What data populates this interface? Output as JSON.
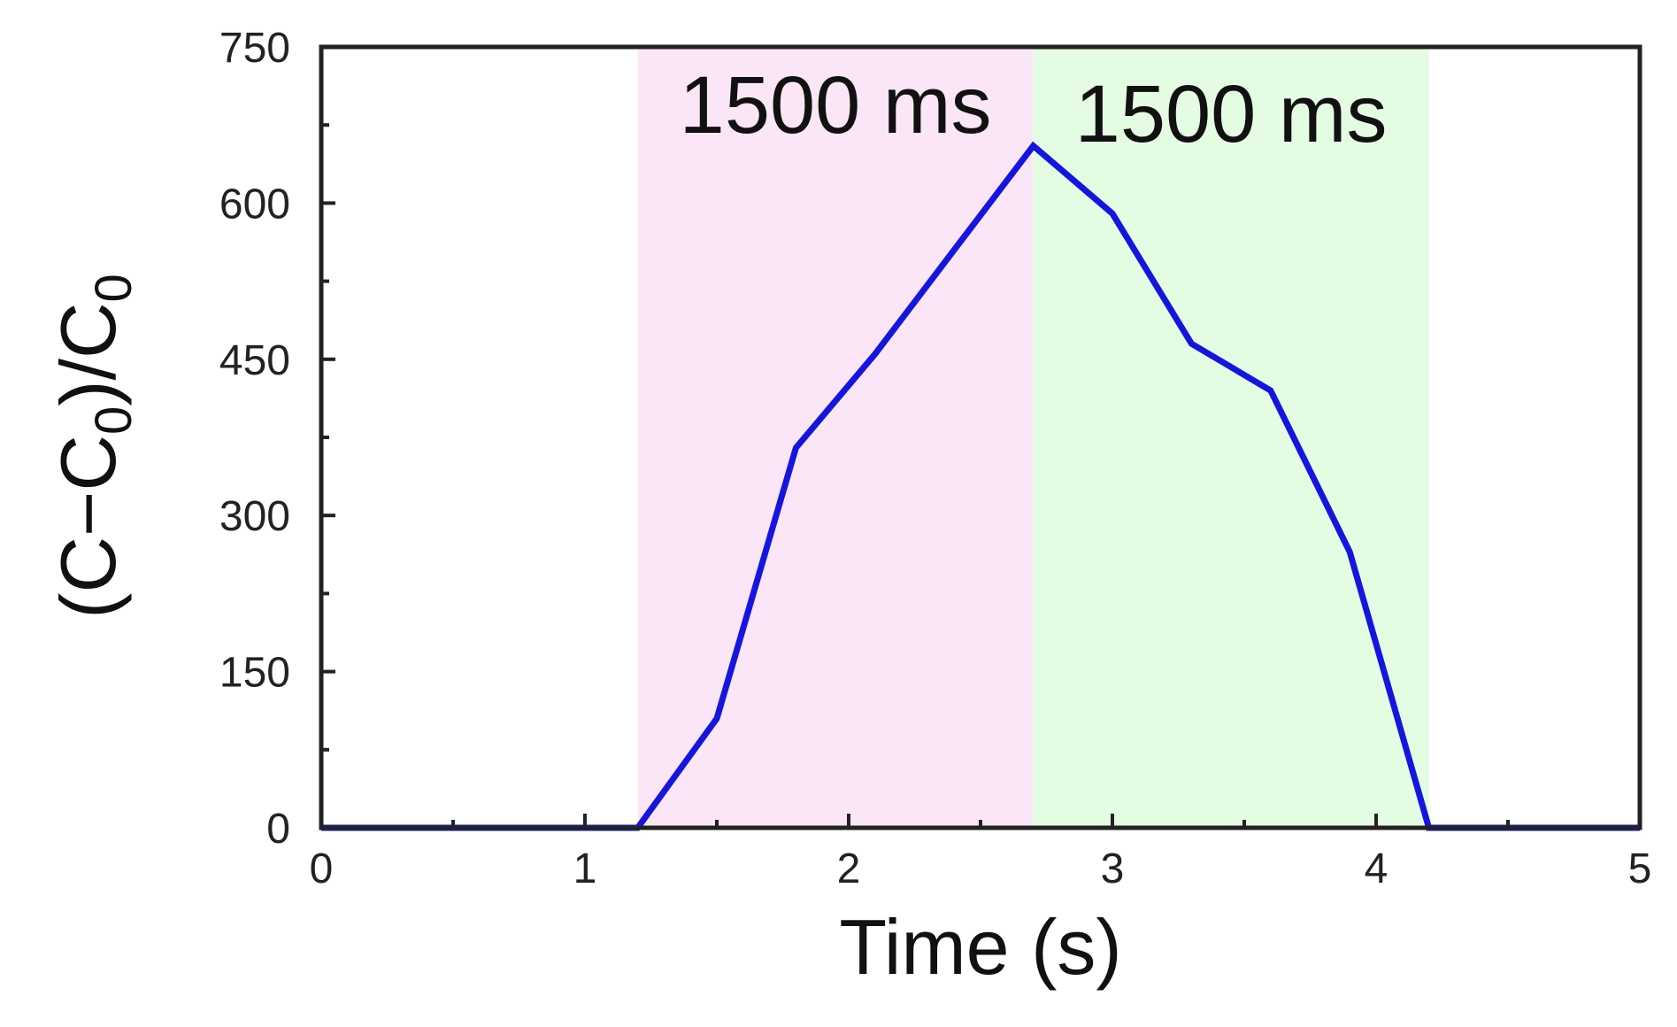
{
  "chart_data": {
    "type": "line",
    "xlabel": "Time (s)",
    "ylabel": "(C−C0)/C0",
    "ylabel_parts": {
      "open": "(C−C",
      "sub1": "0",
      "mid": ")/C",
      "sub2": "0"
    },
    "xlim": [
      0,
      5
    ],
    "ylim": [
      0,
      750
    ],
    "x_ticks": [
      0,
      1,
      2,
      3,
      4,
      5
    ],
    "y_ticks": [
      0,
      150,
      300,
      450,
      600,
      750
    ],
    "x_tick_labels": [
      "0",
      "1",
      "2",
      "3",
      "4",
      "5"
    ],
    "y_tick_labels": [
      "0",
      "150",
      "300",
      "450",
      "600",
      "750"
    ],
    "grid": false,
    "series": [
      {
        "color": "#1515e0",
        "x": [
          0,
          1.2,
          1.5,
          1.8,
          2.1,
          2.4,
          2.7,
          3.0,
          3.3,
          3.6,
          3.9,
          4.2,
          5.0
        ],
        "y": [
          0,
          0,
          105,
          365,
          455,
          555,
          655,
          590,
          465,
          420,
          265,
          0,
          0
        ]
      }
    ],
    "shaded_regions": [
      {
        "x_start": 1.2,
        "x_end": 2.7,
        "color": "#fbe6f8",
        "label": "1500 ms"
      },
      {
        "x_start": 2.7,
        "x_end": 4.2,
        "color": "#e4fce2",
        "label": "1500 ms"
      }
    ]
  }
}
